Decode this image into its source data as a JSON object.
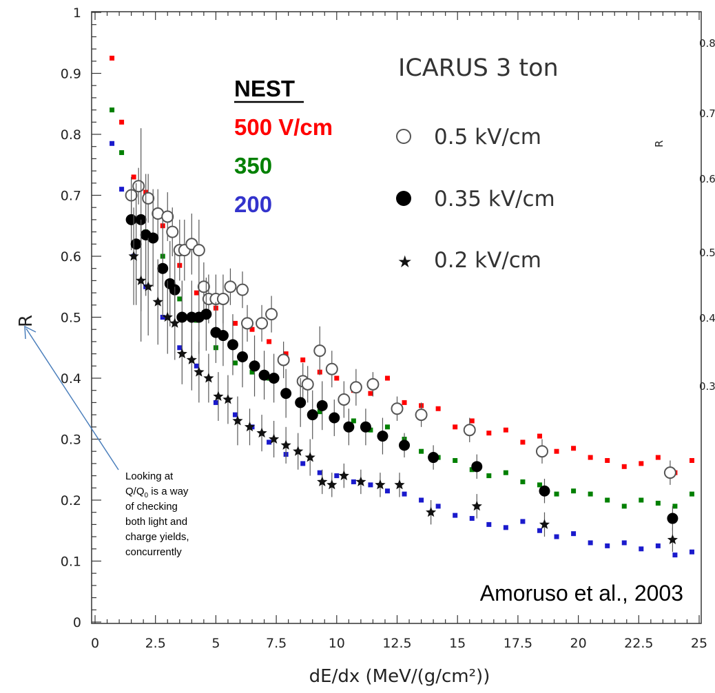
{
  "chart_data": {
    "type": "scatter",
    "xlabel": "dE/dx (MeV/(g/cm²))",
    "ylabel": "R",
    "xlim": [
      0,
      25
    ],
    "ylim": [
      0,
      1
    ],
    "x_ticks": [
      "0",
      "2.5",
      "5",
      "7.5",
      "10",
      "12.5",
      "15",
      "17.5",
      "20",
      "22.5",
      "25"
    ],
    "y_ticks": [
      "0",
      "0.1",
      "0.2",
      "0.3",
      "0.4",
      "0.5",
      "0.6",
      "0.7",
      "0.8",
      "0.9",
      "1"
    ],
    "legend": {
      "title": "ICARUS 3 ton",
      "entries": [
        "0.5 kV/cm",
        "0.35 kV/cm",
        "0.2 kV/cm"
      ],
      "placement": "top-right"
    },
    "nest_legend": {
      "title": "NEST",
      "entries": [
        {
          "label": "500 V/cm",
          "color": "#ff0000"
        },
        {
          "label": "350",
          "color": "#008000"
        },
        {
          "label": "200",
          "color": "#3333cc"
        }
      ]
    },
    "citation": "Amoruso et al., 2003",
    "note_lines": [
      "Looking at",
      "is a way",
      "of checking",
      "both light and",
      "charge yields,",
      "concurrently"
    ],
    "note_q": "Q/Q",
    "note_sub": "0",
    "right_panel_fragments": [
      "0.8",
      "0.7",
      "R",
      "0.6",
      "0.5",
      "0.4",
      "0.3"
    ],
    "series": [
      {
        "name": "0.5 kV/cm",
        "marker": "open-circle",
        "color": "#555555",
        "points": [
          [
            1.5,
            0.7,
            0.03
          ],
          [
            1.8,
            0.715,
            0.03
          ],
          [
            2.2,
            0.695,
            0.04
          ],
          [
            2.6,
            0.67,
            0.04
          ],
          [
            3.0,
            0.665,
            0.04
          ],
          [
            3.2,
            0.64,
            0.04
          ],
          [
            3.5,
            0.61,
            0.05
          ],
          [
            3.7,
            0.61,
            0.05
          ],
          [
            4.0,
            0.62,
            0.05
          ],
          [
            4.3,
            0.61,
            0.05
          ],
          [
            4.5,
            0.55,
            0.04
          ],
          [
            4.7,
            0.53,
            0.04
          ],
          [
            5.0,
            0.53,
            0.04
          ],
          [
            5.3,
            0.53,
            0.04
          ],
          [
            5.6,
            0.55,
            0.03
          ],
          [
            6.1,
            0.545,
            0.03
          ],
          [
            6.3,
            0.49,
            0.03
          ],
          [
            6.9,
            0.49,
            0.03
          ],
          [
            7.3,
            0.505,
            0.03
          ],
          [
            7.8,
            0.43,
            0.03
          ],
          [
            8.6,
            0.395,
            0.03
          ],
          [
            8.8,
            0.39,
            0.03
          ],
          [
            9.3,
            0.445,
            0.04
          ],
          [
            9.8,
            0.415,
            0.03
          ],
          [
            10.3,
            0.365,
            0.03
          ],
          [
            10.8,
            0.385,
            0.03
          ],
          [
            11.5,
            0.39,
            0.02
          ],
          [
            12.5,
            0.35,
            0.02
          ],
          [
            13.5,
            0.34,
            0.02
          ],
          [
            15.5,
            0.315,
            0.02
          ],
          [
            18.5,
            0.28,
            0.02
          ],
          [
            23.8,
            0.245,
            0.02
          ]
        ]
      },
      {
        "name": "0.35 kV/cm",
        "marker": "filled-circle",
        "color": "#000000",
        "points": [
          [
            1.5,
            0.66,
            0.05
          ],
          [
            1.7,
            0.62,
            0.1
          ],
          [
            1.9,
            0.66,
            0.15
          ],
          [
            2.1,
            0.635,
            0.1
          ],
          [
            2.4,
            0.63,
            0.08
          ],
          [
            2.8,
            0.58,
            0.08
          ],
          [
            3.1,
            0.555,
            0.07
          ],
          [
            3.3,
            0.545,
            0.06
          ],
          [
            3.6,
            0.5,
            0.06
          ],
          [
            4.0,
            0.5,
            0.06
          ],
          [
            4.3,
            0.5,
            0.06
          ],
          [
            4.6,
            0.505,
            0.06
          ],
          [
            5.0,
            0.475,
            0.05
          ],
          [
            5.3,
            0.47,
            0.05
          ],
          [
            5.7,
            0.455,
            0.05
          ],
          [
            6.1,
            0.435,
            0.05
          ],
          [
            6.6,
            0.42,
            0.05
          ],
          [
            7.0,
            0.405,
            0.04
          ],
          [
            7.4,
            0.4,
            0.04
          ],
          [
            7.9,
            0.375,
            0.04
          ],
          [
            8.5,
            0.36,
            0.04
          ],
          [
            9.0,
            0.34,
            0.04
          ],
          [
            9.4,
            0.355,
            0.04
          ],
          [
            9.9,
            0.335,
            0.03
          ],
          [
            10.5,
            0.32,
            0.03
          ],
          [
            11.2,
            0.32,
            0.03
          ],
          [
            11.9,
            0.305,
            0.03
          ],
          [
            12.8,
            0.29,
            0.02
          ],
          [
            14.0,
            0.27,
            0.02
          ],
          [
            15.8,
            0.255,
            0.02
          ],
          [
            18.6,
            0.215,
            0.02
          ],
          [
            23.9,
            0.17,
            0.02
          ]
        ]
      },
      {
        "name": "0.2 kV/cm",
        "marker": "star",
        "color": "#111111",
        "points": [
          [
            1.6,
            0.6,
            0.08
          ],
          [
            1.9,
            0.56,
            0.1
          ],
          [
            2.2,
            0.55,
            0.08
          ],
          [
            2.6,
            0.525,
            0.07
          ],
          [
            3.0,
            0.5,
            0.06
          ],
          [
            3.3,
            0.49,
            0.06
          ],
          [
            3.6,
            0.44,
            0.05
          ],
          [
            4.0,
            0.43,
            0.05
          ],
          [
            4.3,
            0.41,
            0.05
          ],
          [
            4.7,
            0.4,
            0.04
          ],
          [
            5.1,
            0.37,
            0.04
          ],
          [
            5.5,
            0.365,
            0.04
          ],
          [
            5.9,
            0.33,
            0.04
          ],
          [
            6.4,
            0.32,
            0.03
          ],
          [
            6.9,
            0.31,
            0.03
          ],
          [
            7.4,
            0.3,
            0.03
          ],
          [
            7.9,
            0.29,
            0.03
          ],
          [
            8.4,
            0.28,
            0.03
          ],
          [
            8.9,
            0.27,
            0.03
          ],
          [
            9.4,
            0.23,
            0.02
          ],
          [
            9.8,
            0.225,
            0.02
          ],
          [
            10.3,
            0.24,
            0.02
          ],
          [
            11.0,
            0.23,
            0.02
          ],
          [
            11.8,
            0.225,
            0.02
          ],
          [
            12.6,
            0.225,
            0.02
          ],
          [
            13.9,
            0.18,
            0.02
          ],
          [
            15.8,
            0.19,
            0.02
          ],
          [
            18.6,
            0.16,
            0.02
          ],
          [
            23.9,
            0.135,
            0.02
          ]
        ]
      },
      {
        "name": "500 V/cm",
        "marker": "square",
        "color": "#ff0000",
        "points": [
          [
            0.7,
            0.925
          ],
          [
            1.1,
            0.82
          ],
          [
            1.6,
            0.73
          ],
          [
            2.1,
            0.705
          ],
          [
            2.8,
            0.65
          ],
          [
            3.5,
            0.585
          ],
          [
            4.2,
            0.54
          ],
          [
            5.0,
            0.515
          ],
          [
            5.8,
            0.49
          ],
          [
            6.5,
            0.48
          ],
          [
            7.2,
            0.46
          ],
          [
            7.9,
            0.44
          ],
          [
            8.6,
            0.43
          ],
          [
            9.3,
            0.41
          ],
          [
            10.0,
            0.4
          ],
          [
            10.7,
            0.38
          ],
          [
            11.4,
            0.375
          ],
          [
            12.1,
            0.4
          ],
          [
            12.8,
            0.36
          ],
          [
            13.5,
            0.355
          ],
          [
            14.2,
            0.35
          ],
          [
            14.9,
            0.32
          ],
          [
            15.6,
            0.33
          ],
          [
            16.3,
            0.31
          ],
          [
            17.0,
            0.315
          ],
          [
            17.7,
            0.295
          ],
          [
            18.4,
            0.305
          ],
          [
            19.1,
            0.28
          ],
          [
            19.8,
            0.285
          ],
          [
            20.5,
            0.27
          ],
          [
            21.2,
            0.265
          ],
          [
            21.9,
            0.255
          ],
          [
            22.6,
            0.26
          ],
          [
            23.3,
            0.27
          ],
          [
            24.0,
            0.245
          ],
          [
            24.7,
            0.265
          ]
        ]
      },
      {
        "name": "350",
        "marker": "square",
        "color": "#008000",
        "points": [
          [
            0.7,
            0.84
          ],
          [
            1.1,
            0.77
          ],
          [
            1.6,
            0.66
          ],
          [
            2.1,
            0.64
          ],
          [
            2.8,
            0.6
          ],
          [
            3.5,
            0.53
          ],
          [
            4.2,
            0.495
          ],
          [
            5.0,
            0.45
          ],
          [
            5.8,
            0.425
          ],
          [
            6.5,
            0.41
          ],
          [
            7.2,
            0.4
          ],
          [
            7.9,
            0.375
          ],
          [
            8.6,
            0.36
          ],
          [
            9.3,
            0.345
          ],
          [
            10.0,
            0.335
          ],
          [
            10.7,
            0.33
          ],
          [
            11.4,
            0.315
          ],
          [
            12.1,
            0.32
          ],
          [
            12.8,
            0.3
          ],
          [
            13.5,
            0.28
          ],
          [
            14.2,
            0.27
          ],
          [
            14.9,
            0.265
          ],
          [
            15.6,
            0.25
          ],
          [
            16.3,
            0.24
          ],
          [
            17.0,
            0.245
          ],
          [
            17.7,
            0.23
          ],
          [
            18.4,
            0.225
          ],
          [
            19.1,
            0.21
          ],
          [
            19.8,
            0.215
          ],
          [
            20.5,
            0.21
          ],
          [
            21.2,
            0.2
          ],
          [
            21.9,
            0.19
          ],
          [
            22.6,
            0.2
          ],
          [
            23.3,
            0.195
          ],
          [
            24.0,
            0.19
          ],
          [
            24.7,
            0.21
          ]
        ]
      },
      {
        "name": "200",
        "marker": "square",
        "color": "#1a1acc",
        "points": [
          [
            0.7,
            0.785
          ],
          [
            1.1,
            0.71
          ],
          [
            1.6,
            0.6
          ],
          [
            2.1,
            0.55
          ],
          [
            2.8,
            0.5
          ],
          [
            3.5,
            0.45
          ],
          [
            4.2,
            0.42
          ],
          [
            5.0,
            0.36
          ],
          [
            5.8,
            0.34
          ],
          [
            6.5,
            0.32
          ],
          [
            7.2,
            0.295
          ],
          [
            7.9,
            0.275
          ],
          [
            8.6,
            0.26
          ],
          [
            9.3,
            0.245
          ],
          [
            10.0,
            0.24
          ],
          [
            10.7,
            0.23
          ],
          [
            11.4,
            0.225
          ],
          [
            12.1,
            0.215
          ],
          [
            12.8,
            0.21
          ],
          [
            13.5,
            0.2
          ],
          [
            14.2,
            0.19
          ],
          [
            14.9,
            0.175
          ],
          [
            15.6,
            0.17
          ],
          [
            16.3,
            0.16
          ],
          [
            17.0,
            0.155
          ],
          [
            17.7,
            0.165
          ],
          [
            18.4,
            0.15
          ],
          [
            19.1,
            0.14
          ],
          [
            19.8,
            0.145
          ],
          [
            20.5,
            0.13
          ],
          [
            21.2,
            0.125
          ],
          [
            21.9,
            0.13
          ],
          [
            22.6,
            0.12
          ],
          [
            23.3,
            0.125
          ],
          [
            24.0,
            0.11
          ],
          [
            24.7,
            0.115
          ]
        ]
      }
    ]
  }
}
